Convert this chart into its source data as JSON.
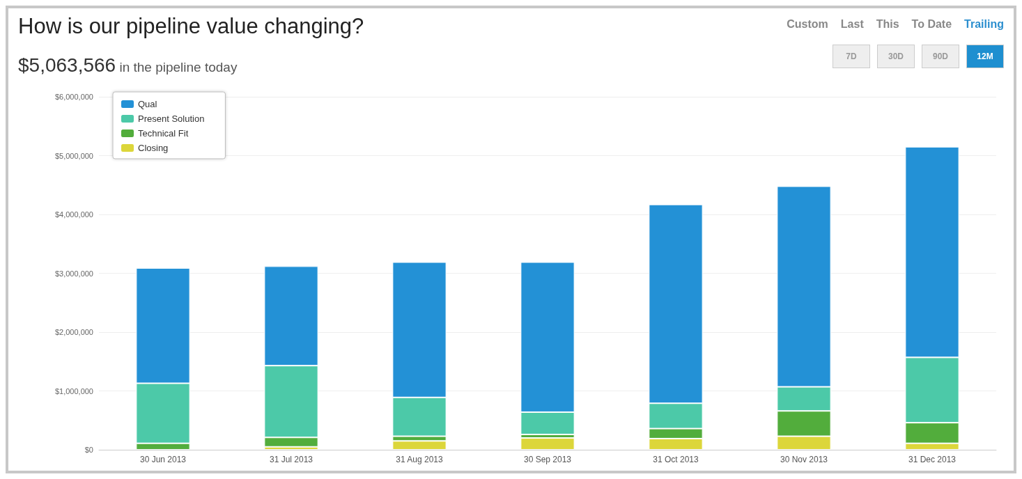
{
  "chart_data": {
    "type": "bar",
    "stacked": true,
    "title": "How is our pipeline value changing?",
    "subtitle": "$5,063,566 in the pipeline today",
    "annotations": [
      "Custom",
      "Last",
      "This",
      "To Date",
      "Trailing",
      "7D",
      "30D",
      "90D",
      "12M"
    ],
    "categories": [
      "30 Jun 2013",
      "31 Jul 2013",
      "31 Aug 2013",
      "30 Sep 2013",
      "31 Oct 2013",
      "30 Nov 2013",
      "31 Dec 2013"
    ],
    "series": [
      {
        "name": "Closing",
        "color": "#dcd63a",
        "values": [
          null,
          50000,
          150000,
          200000,
          190000,
          230000,
          110000
        ]
      },
      {
        "name": "Technical Fit",
        "color": "#52ad3c",
        "values": [
          110000,
          160000,
          80000,
          60000,
          170000,
          430000,
          350000
        ]
      },
      {
        "name": "Present Solution",
        "color": "#4cc9a8",
        "values": [
          1020000,
          1220000,
          660000,
          380000,
          430000,
          410000,
          1110000
        ]
      },
      {
        "name": "Qual",
        "color": "#2391d6",
        "values": [
          1960000,
          1690000,
          2300000,
          2550000,
          3380000,
          3410000,
          3580000
        ]
      }
    ],
    "ylim": [
      0,
      6000000
    ],
    "yticks": [
      {
        "value": 0,
        "label": "$0"
      },
      {
        "value": 1000000,
        "label": "$1,000,000"
      },
      {
        "value": 2000000,
        "label": "$2,000,000"
      },
      {
        "value": 3000000,
        "label": "$3,000,000"
      },
      {
        "value": 4000000,
        "label": "$4,000,000"
      },
      {
        "value": 5000000,
        "label": "$5,000,000"
      },
      {
        "value": 6000000,
        "label": "$6,000,000"
      }
    ],
    "grid": "y",
    "legend": "top left"
  }
}
